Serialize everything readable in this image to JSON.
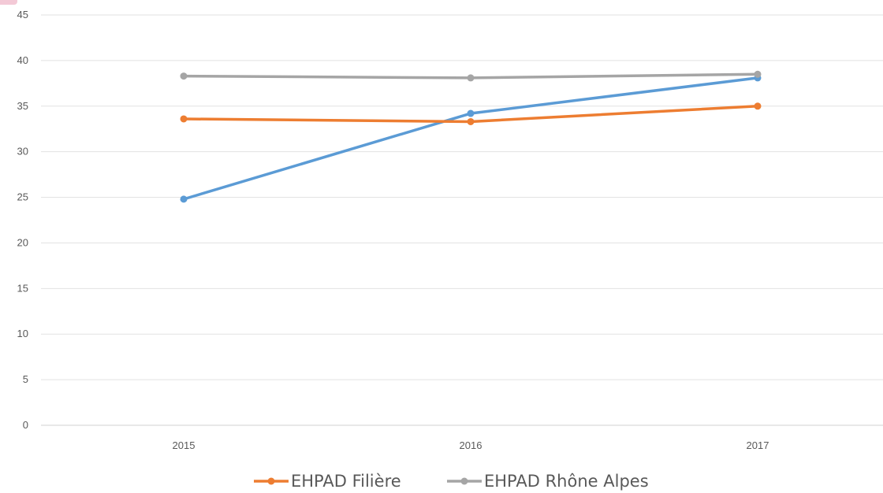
{
  "chart_data": {
    "type": "line",
    "categories": [
      "2015",
      "2016",
      "2017"
    ],
    "ylim": [
      0,
      45
    ],
    "yticks": [
      0,
      5,
      10,
      15,
      20,
      25,
      30,
      35,
      40,
      45
    ],
    "grid": true,
    "legend_position": "bottom",
    "title": "",
    "xlabel": "",
    "ylabel": "",
    "series": [
      {
        "name": "",
        "color": "#5b9bd5",
        "values": [
          24.8,
          34.2,
          38.1
        ],
        "in_legend": false
      },
      {
        "name": "EHPAD Filière",
        "color": "#ed7d31",
        "values": [
          33.6,
          33.3,
          35.0
        ],
        "in_legend": true
      },
      {
        "name": "EHPAD Rhône Alpes",
        "color": "#a5a5a5",
        "values": [
          38.3,
          38.1,
          38.5
        ],
        "in_legend": true
      }
    ]
  }
}
